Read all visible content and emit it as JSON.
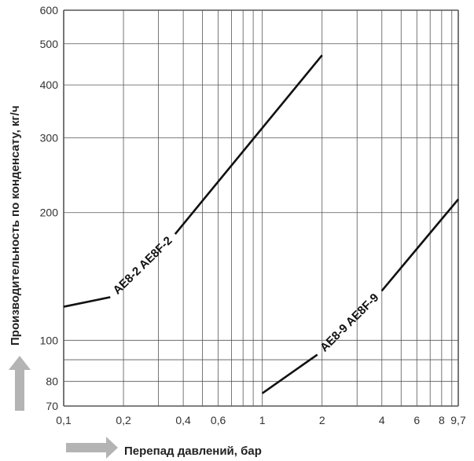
{
  "chart_data": {
    "type": "line",
    "xscale": "log",
    "yscale": "log",
    "xlim": [
      0.1,
      9.7
    ],
    "ylim": [
      70,
      600
    ],
    "xlabel": "Перепад давлений, бар",
    "ylabel": "Производительность по конденсату, кг/ч",
    "grid": true,
    "x_gridlines": [
      0.1,
      0.2,
      0.3,
      0.4,
      0.5,
      0.6,
      0.7,
      0.8,
      0.9,
      1,
      2,
      3,
      4,
      5,
      6,
      7,
      8,
      9,
      9.7
    ],
    "y_gridlines": [
      70,
      80,
      90,
      100,
      200,
      300,
      400,
      500,
      600
    ],
    "x_ticks": [
      {
        "value": 0.1,
        "label": "0,1"
      },
      {
        "value": 0.2,
        "label": "0,2"
      },
      {
        "value": 0.4,
        "label": "0,4"
      },
      {
        "value": 0.6,
        "label": "0,6"
      },
      {
        "value": 1,
        "label": "1"
      },
      {
        "value": 2,
        "label": "2"
      },
      {
        "value": 4,
        "label": "4"
      },
      {
        "value": 6,
        "label": "6"
      },
      {
        "value": 8,
        "label": "8"
      },
      {
        "value": 9.7,
        "label": "9,7"
      }
    ],
    "y_ticks": [
      {
        "value": 70,
        "label": "70"
      },
      {
        "value": 80,
        "label": "80"
      },
      {
        "value": 100,
        "label": "100"
      },
      {
        "value": 200,
        "label": "200"
      },
      {
        "value": 300,
        "label": "300"
      },
      {
        "value": 400,
        "label": "400"
      },
      {
        "value": 500,
        "label": "500"
      },
      {
        "value": 600,
        "label": "600"
      }
    ],
    "series": [
      {
        "name": "AE8-2  AE8F-2",
        "points": [
          {
            "x": 0.1,
            "y": 120
          },
          {
            "x": 2,
            "y": 470
          }
        ],
        "label_position": [
          0.25,
          150
        ]
      },
      {
        "name": "AE8-9  AE8F-9",
        "points": [
          {
            "x": 1,
            "y": 75
          },
          {
            "x": 9.7,
            "y": 215
          }
        ],
        "label_position": [
          2.75,
          110
        ]
      }
    ]
  },
  "colors": {
    "grid": "#555555",
    "line": "#111111",
    "arrow": "#b4b4b4"
  },
  "icons": {
    "x_arrow": "arrow-right-icon",
    "y_arrow": "arrow-up-icon"
  }
}
